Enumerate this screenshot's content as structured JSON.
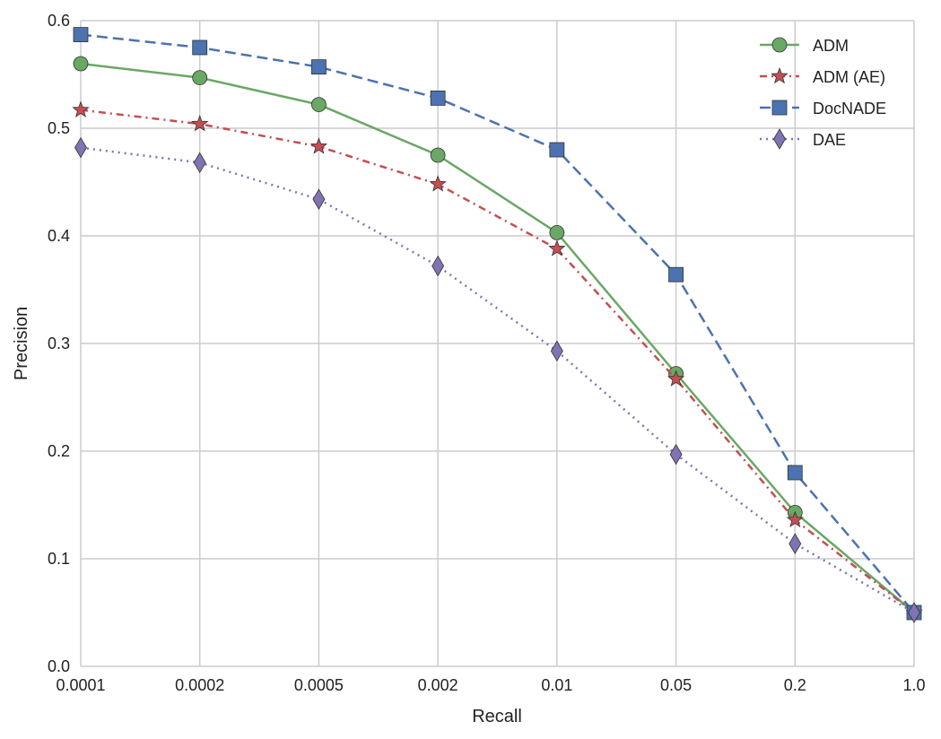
{
  "chart_data": {
    "type": "line",
    "xlabel": "Recall",
    "ylabel": "Precision",
    "categories": [
      "0.0001",
      "0.0002",
      "0.0005",
      "0.002",
      "0.01",
      "0.05",
      "0.2",
      "1.0"
    ],
    "ylim": [
      0.0,
      0.6
    ],
    "yticks": [
      "0.0",
      "0.1",
      "0.2",
      "0.3",
      "0.4",
      "0.5",
      "0.6"
    ],
    "grid": true,
    "legend": "top-right",
    "series": [
      {
        "name": "ADM",
        "color": "#6aa865",
        "marker": "circle",
        "dash": "solid",
        "values": [
          0.56,
          0.547,
          0.522,
          0.475,
          0.403,
          0.272,
          0.143,
          0.05
        ]
      },
      {
        "name": "ADM (AE)",
        "color": "#c44e52",
        "marker": "star",
        "dash": "dashdot",
        "values": [
          0.517,
          0.504,
          0.483,
          0.448,
          0.388,
          0.267,
          0.136,
          0.05
        ]
      },
      {
        "name": "DocNADE",
        "color": "#4c72b0",
        "marker": "square",
        "dash": "dashed",
        "values": [
          0.587,
          0.575,
          0.557,
          0.528,
          0.48,
          0.364,
          0.18,
          0.05
        ]
      },
      {
        "name": "DAE",
        "color": "#8172b2",
        "marker": "diamond",
        "dash": "dotted",
        "values": [
          0.482,
          0.468,
          0.434,
          0.372,
          0.293,
          0.197,
          0.114,
          0.05
        ]
      }
    ]
  }
}
